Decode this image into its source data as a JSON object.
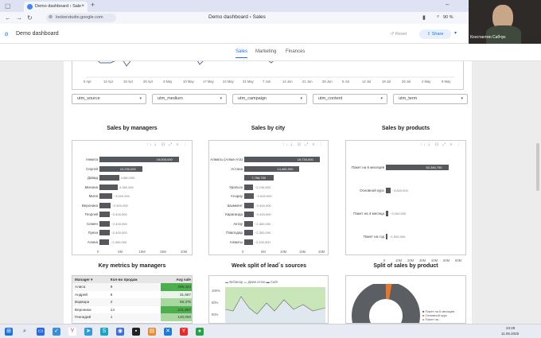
{
  "browser": {
    "tab_title": "Demo dashboard › Sale",
    "url": "lookerstudio.google.com",
    "center_title": "Demo dashboard › Sales",
    "zoom": "90 %"
  },
  "app": {
    "title": "Demo dashboard",
    "reset_label": "Reset",
    "share_label": "Share"
  },
  "video": {
    "name": "Константин Сабчук"
  },
  "page_tabs": [
    "Sales",
    "Marketing",
    "Finances"
  ],
  "timeline_axis": [
    "5 Apr",
    "12 Apr",
    "19 Apr",
    "26 Apr",
    "3 May",
    "10 May",
    "17 May",
    "24 May",
    "31 May",
    "7 Jun",
    "14 Jun",
    "21 Jun",
    "28 Jun",
    "5 Jul",
    "12 Jul",
    "19 Jul",
    "26 Jul",
    "2 May",
    "9 May"
  ],
  "filters": [
    "utm_source",
    "utm_medium",
    "utm_campaign",
    "utm_content",
    "utm_term"
  ],
  "charts": {
    "managers": {
      "title": "Sales by managers",
      "type": "bar",
      "categories": [
        "Никита",
        "Сергей",
        "Давид",
        "Милана",
        "Мила",
        "Вероника",
        "Георгий",
        "Семен",
        "Луиза",
        "Алина"
      ],
      "values": [
        19000000,
        10230000,
        4680000,
        4380000,
        3000000,
        2600000,
        2400000,
        2400000,
        2400000,
        2300000
      ],
      "value_labels": [
        "19,000,000",
        "10,230,000",
        "4,680,000",
        "4,380,000",
        "~3,000,000",
        "~2,600,000",
        "~2,400,000",
        "~2,400,000",
        "~2,400,000",
        "~2,300,000"
      ],
      "xticks": [
        "0",
        "5M",
        "10M",
        "15M",
        "20M"
      ],
      "xmax": 20000000
    },
    "city": {
      "title": "Sales by city",
      "type": "bar",
      "categories": [
        "Алматы (Алма-Ата)",
        "Астана",
        "",
        "Уральск",
        "Атырау",
        "Шымкент",
        "Караганда",
        "Актау",
        "Павлодар",
        "Алматы"
      ],
      "values": [
        19730000,
        14460000,
        7768750,
        2240000,
        2600000,
        2400000,
        2400000,
        2300000,
        2300000,
        2200000
      ],
      "value_labels": [
        "19,730,000",
        "14,460,000",
        "7,768,750",
        "~2,240,000",
        "~2,600,000",
        "~2,400,000",
        "~2,400,000",
        "~2,300,000",
        "~2,300,000",
        "~2,200,000"
      ],
      "xticks": [
        "0",
        "5M",
        "10M",
        "15M",
        "20M"
      ],
      "xmax": 20000000
    },
    "products": {
      "title": "Sales by products",
      "type": "bar",
      "categories": [
        "Пакет на 6 месяцев",
        "Основной курс",
        "Пакет на 4 месяца",
        "Пакет на год"
      ],
      "values": [
        52346750,
        3820000,
        2000000,
        1500000
      ],
      "value_labels": [
        "52,346,750",
        "~3,820,000",
        "~2,000,000",
        "~1,500,000"
      ],
      "xticks": [
        "0",
        "10M",
        "20M",
        "30M",
        "40M",
        "50M",
        "60M"
      ],
      "xmax": 60000000
    }
  },
  "key_metrics": {
    "title": "Key metrics by managers",
    "headers": [
      "Manager",
      "Кол-во продаж",
      "Avg sale"
    ],
    "rows": [
      [
        "Алиса",
        "9",
        "299,444"
      ],
      [
        "Андрей",
        "6",
        "31,667"
      ],
      [
        "Варвара",
        "2",
        "59,375"
      ],
      [
        "Вероника",
        "14",
        "221,857"
      ],
      [
        "Геннадий",
        "1",
        "120,000"
      ]
    ]
  },
  "week_split": {
    "title": "Week split of lead`s sources",
    "legend": [
      "Вебинар",
      "Движ.сетки",
      "Сайт"
    ],
    "yticks": [
      "100%",
      "80%",
      "60%"
    ]
  },
  "split_product": {
    "title": "Split of sales by product",
    "legend": [
      "Пакет на 6 месяцев",
      "Основной курс",
      "Пакет на..."
    ]
  },
  "taskbar": {
    "time": "23:29",
    "date": "11.05.2025"
  },
  "colors": {
    "accent": "#1a73e8",
    "bar": "#55595e",
    "green_cell": "#5cb85c"
  }
}
